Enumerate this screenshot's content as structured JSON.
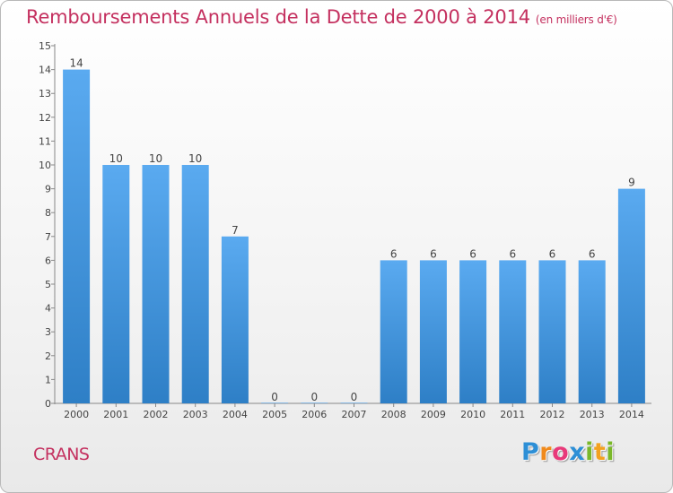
{
  "chart_data": {
    "type": "bar",
    "title": "Remboursements Annuels de la Dette de 2000 à 2014",
    "unit_note": "(en milliers d'€)",
    "categories": [
      "2000",
      "2001",
      "2002",
      "2003",
      "2004",
      "2005",
      "2006",
      "2007",
      "2008",
      "2009",
      "2010",
      "2011",
      "2012",
      "2013",
      "2014"
    ],
    "values": [
      14,
      10,
      10,
      10,
      7,
      0,
      0,
      0,
      6,
      6,
      6,
      6,
      6,
      6,
      9
    ],
    "data_labels": [
      "14",
      "10",
      "10",
      "10",
      "7",
      "0",
      "0",
      "0",
      "6",
      "6",
      "6",
      "6",
      "6",
      "6",
      "9"
    ],
    "ylim": [
      0,
      15
    ],
    "yticks": [
      0,
      1,
      2,
      3,
      4,
      5,
      6,
      7,
      8,
      9,
      10,
      11,
      12,
      13,
      14,
      15
    ],
    "xlabel": "",
    "ylabel": "",
    "grid": false,
    "legend": "none",
    "bar_color": "#4a9be0"
  },
  "footer": {
    "commune": "CRANS",
    "logo": [
      {
        "ch": "P",
        "color": "#2d8fd6"
      },
      {
        "ch": "r",
        "color": "#f08a1c"
      },
      {
        "ch": "o",
        "color": "#e83a7a"
      },
      {
        "ch": "x",
        "color": "#2d8fd6"
      },
      {
        "ch": "i",
        "color": "#7ab829"
      },
      {
        "ch": "t",
        "color": "#f3a11f"
      },
      {
        "ch": "i",
        "color": "#7ab829"
      }
    ]
  }
}
